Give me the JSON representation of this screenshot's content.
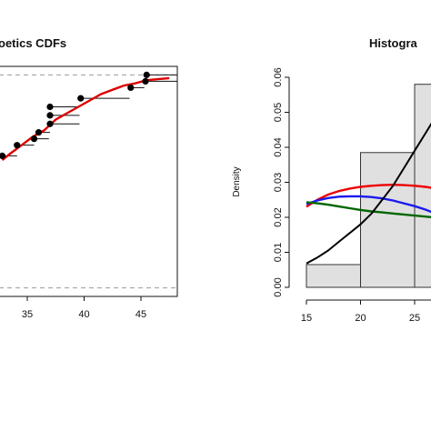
{
  "chart_data": [
    {
      "type": "scatter",
      "title": "oetics CDFs",
      "xlim": [
        31.8,
        48.2
      ],
      "ylim": [
        -0.04,
        1.04
      ],
      "x_ticks": [
        35,
        40,
        45
      ],
      "x_tick_labels": [
        "35",
        "40",
        "45"
      ],
      "grid": false,
      "reference_lines_y": [
        0,
        1
      ],
      "empirical_steps": [
        {
          "x": 32.8,
          "x_end": 34.1,
          "y": 0.62
        },
        {
          "x": 34.1,
          "x_end": 35.6,
          "y": 0.67
        },
        {
          "x": 35.6,
          "x_end": 36.9,
          "y": 0.7
        },
        {
          "x": 36.0,
          "x_end": 37.0,
          "y": 0.73
        },
        {
          "x": 37.0,
          "x_end": 39.6,
          "y": 0.77
        },
        {
          "x": 37.0,
          "x_end": 39.6,
          "y": 0.81
        },
        {
          "x": 37.0,
          "x_end": 39.6,
          "y": 0.85
        },
        {
          "x": 39.7,
          "x_end": 44.0,
          "y": 0.89
        },
        {
          "x": 44.1,
          "x_end": 45.3,
          "y": 0.94
        },
        {
          "x": 45.4,
          "x_end": 48.2,
          "y": 0.97
        },
        {
          "x": 45.5,
          "x_end": 48.2,
          "y": 1.0
        }
      ],
      "fitted_curve": {
        "color": "#dd0000",
        "points": [
          [
            32.8,
            0.6
          ],
          [
            33.5,
            0.63
          ],
          [
            34.5,
            0.67
          ],
          [
            35.5,
            0.71
          ],
          [
            36.5,
            0.74
          ],
          [
            37.5,
            0.79
          ],
          [
            38.5,
            0.82
          ],
          [
            39.5,
            0.85
          ],
          [
            40.5,
            0.88
          ],
          [
            41.5,
            0.91
          ],
          [
            42.5,
            0.93
          ],
          [
            43.5,
            0.95
          ],
          [
            44.5,
            0.96
          ],
          [
            45.5,
            0.975
          ],
          [
            46.5,
            0.98
          ],
          [
            47.5,
            0.985
          ]
        ]
      }
    },
    {
      "type": "bar",
      "title": "Histogra",
      "ylabel": "Density",
      "xlim": [
        14.5,
        29.5
      ],
      "ylim": [
        0,
        0.06
      ],
      "x_ticks": [
        15,
        20,
        25
      ],
      "x_tick_labels": [
        "15",
        "20",
        "25"
      ],
      "y_ticks": [
        0.0,
        0.01,
        0.02,
        0.03,
        0.04,
        0.05,
        0.06
      ],
      "y_tick_labels": [
        "0.00",
        "0.01",
        "0.02",
        "0.03",
        "0.04",
        "0.05",
        "0.06"
      ],
      "bins": [
        {
          "from": 15,
          "to": 20,
          "density": 0.0065
        },
        {
          "from": 20,
          "to": 25,
          "density": 0.0385
        },
        {
          "from": 25,
          "to": 30,
          "density": 0.058
        }
      ],
      "bar_fill": "#e0e0e0",
      "density_curves": [
        {
          "color": "#000000",
          "points": [
            [
              15,
              0.0068
            ],
            [
              16,
              0.0085
            ],
            [
              17,
              0.0105
            ],
            [
              18,
              0.013
            ],
            [
              19,
              0.0155
            ],
            [
              20,
              0.018
            ],
            [
              21,
              0.021
            ],
            [
              22,
              0.025
            ],
            [
              23,
              0.029
            ],
            [
              24,
              0.034
            ],
            [
              25,
              0.039
            ],
            [
              26,
              0.044
            ],
            [
              27,
              0.049
            ],
            [
              28,
              0.054
            ]
          ]
        },
        {
          "color": "#ee0000",
          "points": [
            [
              15,
              0.023
            ],
            [
              16,
              0.025
            ],
            [
              17,
              0.0265
            ],
            [
              18,
              0.0275
            ],
            [
              19,
              0.0282
            ],
            [
              20,
              0.0287
            ],
            [
              21,
              0.029
            ],
            [
              22,
              0.0292
            ],
            [
              23,
              0.0293
            ],
            [
              24,
              0.0292
            ],
            [
              25,
              0.029
            ],
            [
              26,
              0.0287
            ],
            [
              27,
              0.0282
            ],
            [
              28,
              0.0275
            ]
          ]
        },
        {
          "color": "#1a1aee",
          "points": [
            [
              15,
              0.0238
            ],
            [
              16,
              0.0248
            ],
            [
              17,
              0.0255
            ],
            [
              18,
              0.0259
            ],
            [
              19,
              0.026
            ],
            [
              20,
              0.026
            ],
            [
              21,
              0.0258
            ],
            [
              22,
              0.0254
            ],
            [
              23,
              0.0248
            ],
            [
              24,
              0.024
            ],
            [
              25,
              0.0232
            ],
            [
              26,
              0.0222
            ],
            [
              27,
              0.021
            ],
            [
              28,
              0.0198
            ]
          ]
        },
        {
          "color": "#006600",
          "points": [
            [
              15,
              0.0243
            ],
            [
              16,
              0.024
            ],
            [
              17,
              0.0236
            ],
            [
              18,
              0.0231
            ],
            [
              19,
              0.0226
            ],
            [
              20,
              0.0221
            ],
            [
              21,
              0.0217
            ],
            [
              22,
              0.0214
            ],
            [
              23,
              0.0211
            ],
            [
              24,
              0.0208
            ],
            [
              25,
              0.0205
            ],
            [
              26,
              0.0202
            ],
            [
              27,
              0.0199
            ],
            [
              28,
              0.0196
            ]
          ]
        }
      ]
    }
  ]
}
